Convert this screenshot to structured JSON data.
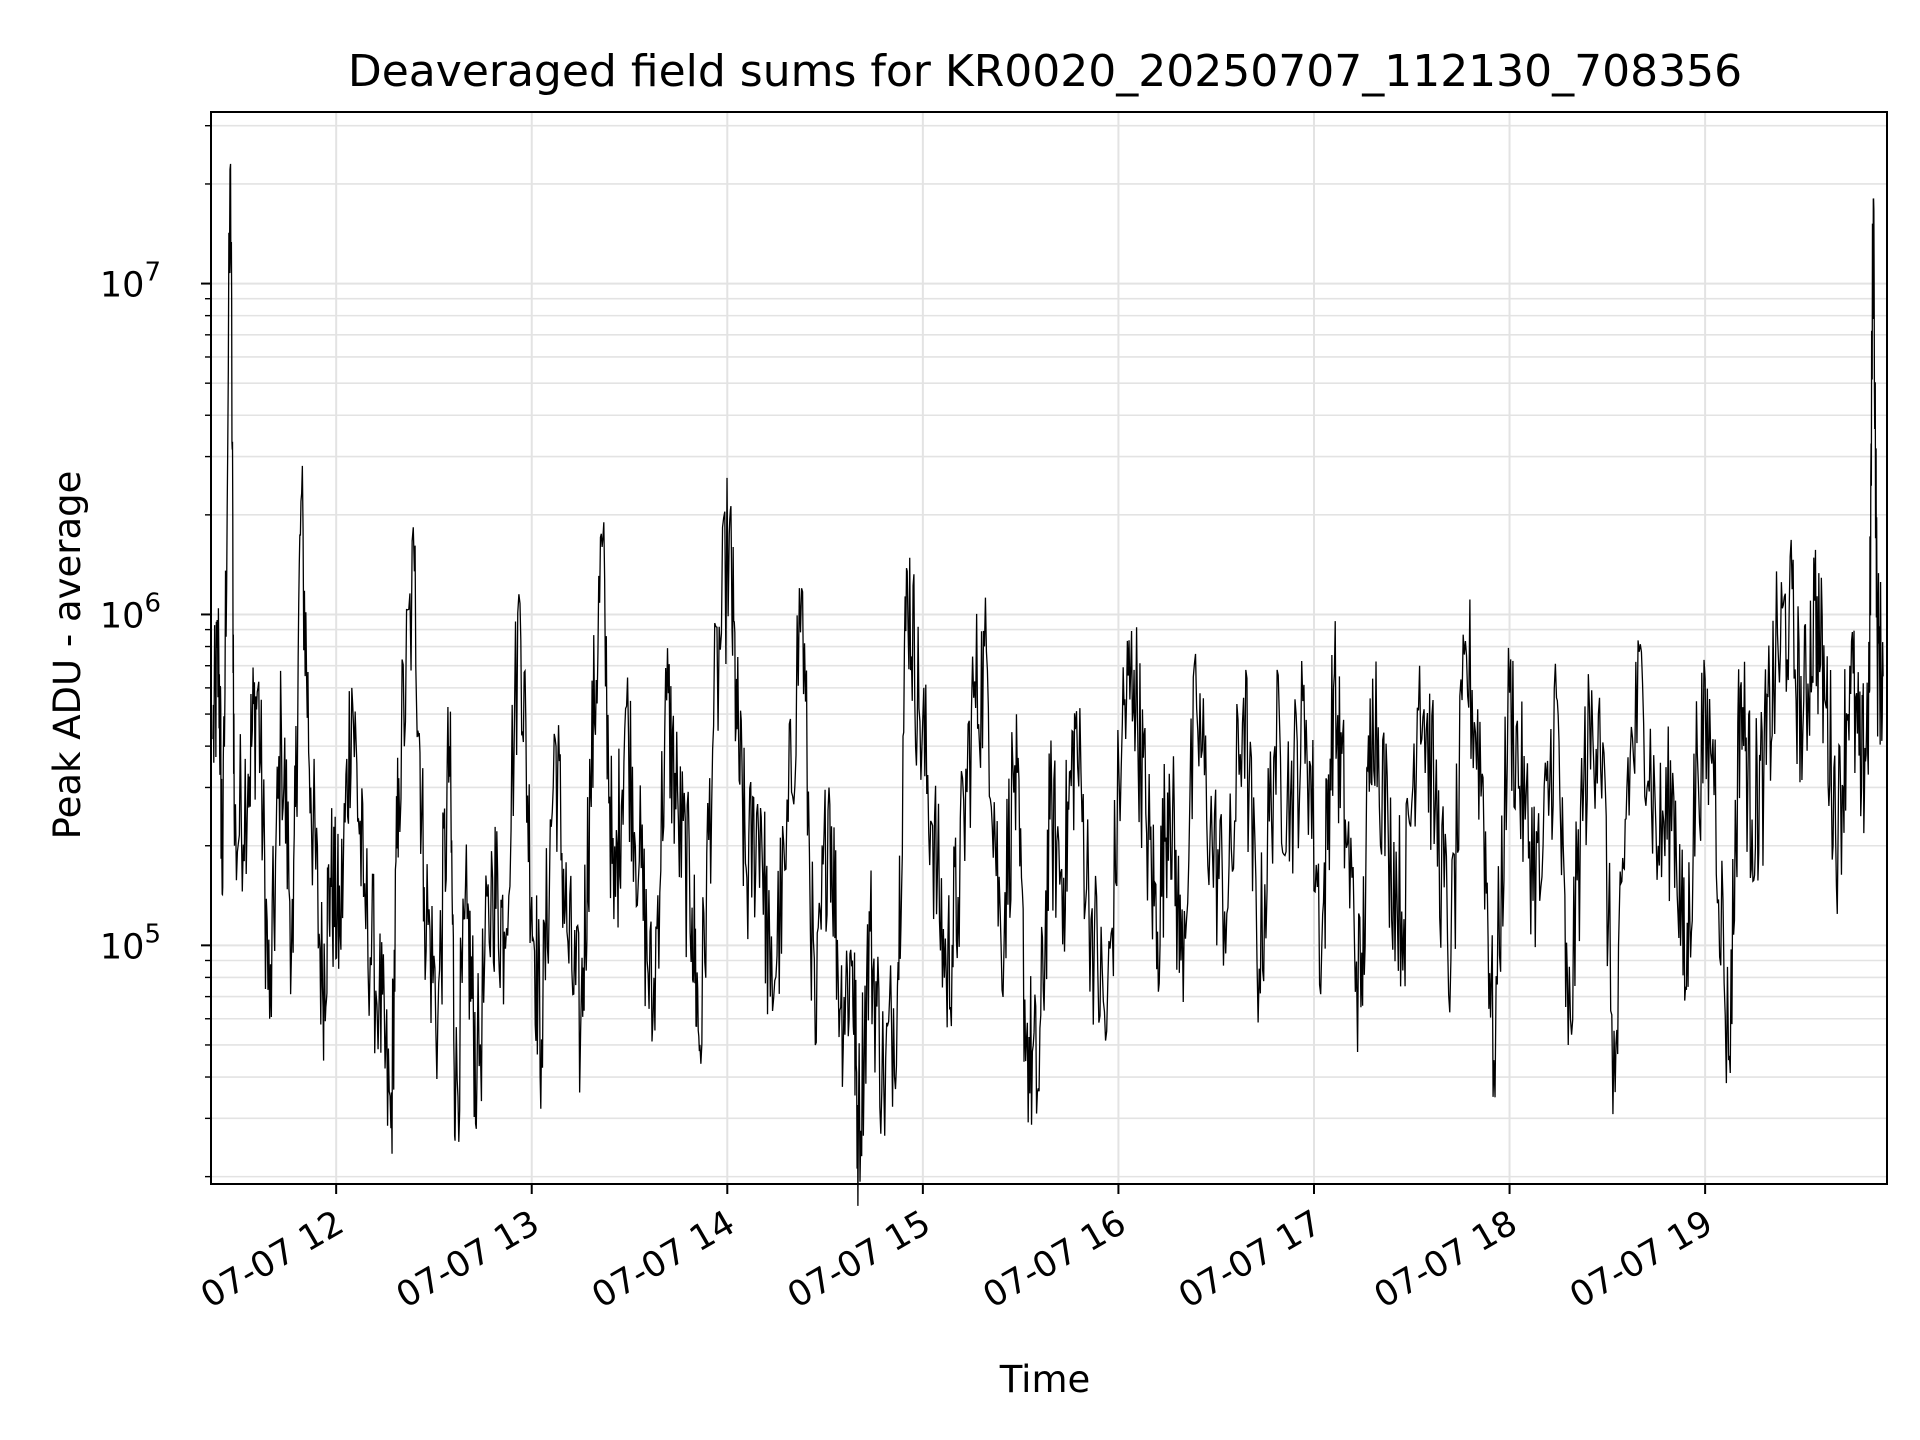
{
  "chart_data": {
    "type": "line",
    "title": "Deaveraged field sums for KR0020_20250707_112130_708356",
    "xlabel": "Time",
    "ylabel": "Peak ADU - average",
    "yscale": "log",
    "grid": true,
    "line_color": "#000000",
    "grid_color": "#e3e3e3",
    "xlim_hours": [
      11.36,
      19.93
    ],
    "ylim": [
      19000,
      33000000
    ],
    "x_ticks": [
      {
        "hour": 12,
        "label": "07-07 12"
      },
      {
        "hour": 13,
        "label": "07-07 13"
      },
      {
        "hour": 14,
        "label": "07-07 14"
      },
      {
        "hour": 15,
        "label": "07-07 15"
      },
      {
        "hour": 16,
        "label": "07-07 16"
      },
      {
        "hour": 17,
        "label": "07-07 17"
      },
      {
        "hour": 18,
        "label": "07-07 18"
      },
      {
        "hour": 19,
        "label": "07-07 19"
      }
    ],
    "y_ticks": [
      {
        "value": 100000,
        "base": "10",
        "exp": "5"
      },
      {
        "value": 1000000,
        "base": "10",
        "exp": "6"
      },
      {
        "value": 10000000,
        "base": "10",
        "exp": "7"
      }
    ],
    "series": [
      {
        "points": [
          [
            11.37,
            420000
          ],
          [
            11.4,
            750000
          ],
          [
            11.42,
            150000
          ],
          [
            11.46,
            23000000
          ],
          [
            11.48,
            200000
          ],
          [
            11.55,
            330000
          ],
          [
            11.6,
            600000
          ],
          [
            11.66,
            60000
          ],
          [
            11.72,
            450000
          ],
          [
            11.78,
            95000
          ],
          [
            11.82,
            2200000
          ],
          [
            11.87,
            300000
          ],
          [
            11.93,
            75000
          ],
          [
            11.97,
            160000
          ],
          [
            12.02,
            110000
          ],
          [
            12.08,
            600000
          ],
          [
            12.14,
            140000
          ],
          [
            12.22,
            70000
          ],
          [
            12.28,
            28000
          ],
          [
            12.32,
            320000
          ],
          [
            12.4,
            1350000
          ],
          [
            12.45,
            150000
          ],
          [
            12.52,
            60000
          ],
          [
            12.58,
            400000
          ],
          [
            12.61,
            33000
          ],
          [
            12.67,
            120000
          ],
          [
            12.72,
            40000
          ],
          [
            12.8,
            160000
          ],
          [
            12.86,
            110000
          ],
          [
            12.94,
            1080000
          ],
          [
            13.0,
            140000
          ],
          [
            13.05,
            52000
          ],
          [
            13.12,
            420000
          ],
          [
            13.18,
            110000
          ],
          [
            13.25,
            55000
          ],
          [
            13.3,
            300000
          ],
          [
            13.36,
            1600000
          ],
          [
            13.42,
            120000
          ],
          [
            13.48,
            520000
          ],
          [
            13.55,
            180000
          ],
          [
            13.62,
            60000
          ],
          [
            13.69,
            550000
          ],
          [
            13.75,
            240000
          ],
          [
            13.82,
            130000
          ],
          [
            13.86,
            50000
          ],
          [
            13.93,
            460000
          ],
          [
            14.01,
            1750000
          ],
          [
            14.05,
            450000
          ],
          [
            14.1,
            160000
          ],
          [
            14.17,
            260000
          ],
          [
            14.22,
            70000
          ],
          [
            14.3,
            170000
          ],
          [
            14.38,
            1200000
          ],
          [
            14.45,
            50000
          ],
          [
            14.52,
            300000
          ],
          [
            14.58,
            65000
          ],
          [
            14.64,
            90000
          ],
          [
            14.67,
            27000
          ],
          [
            14.73,
            110000
          ],
          [
            14.8,
            38000
          ],
          [
            14.87,
            75000
          ],
          [
            14.92,
            1350000
          ],
          [
            14.98,
            520000
          ],
          [
            15.05,
            230000
          ],
          [
            15.12,
            80000
          ],
          [
            15.18,
            140000
          ],
          [
            15.26,
            560000
          ],
          [
            15.33,
            680000
          ],
          [
            15.4,
            100000
          ],
          [
            15.47,
            350000
          ],
          [
            15.53,
            52000
          ],
          [
            15.59,
            37000
          ],
          [
            15.65,
            240000
          ],
          [
            15.72,
            160000
          ],
          [
            15.78,
            450000
          ],
          [
            15.86,
            120000
          ],
          [
            15.94,
            55000
          ],
          [
            16.02,
            470000
          ],
          [
            16.08,
            680000
          ],
          [
            16.14,
            250000
          ],
          [
            16.2,
            110000
          ],
          [
            16.26,
            330000
          ],
          [
            16.32,
            90000
          ],
          [
            16.4,
            520000
          ],
          [
            16.48,
            200000
          ],
          [
            16.56,
            130000
          ],
          [
            16.64,
            560000
          ],
          [
            16.72,
            85000
          ],
          [
            16.8,
            400000
          ],
          [
            16.88,
            280000
          ],
          [
            16.96,
            480000
          ],
          [
            17.04,
            100000
          ],
          [
            17.1,
            600000
          ],
          [
            17.16,
            240000
          ],
          [
            17.24,
            65000
          ],
          [
            17.3,
            640000
          ],
          [
            17.38,
            210000
          ],
          [
            17.46,
            120000
          ],
          [
            17.54,
            700000
          ],
          [
            17.62,
            260000
          ],
          [
            17.7,
            90000
          ],
          [
            17.78,
            750000
          ],
          [
            17.86,
            330000
          ],
          [
            17.92,
            45000
          ],
          [
            18.0,
            580000
          ],
          [
            18.08,
            240000
          ],
          [
            18.16,
            150000
          ],
          [
            18.24,
            560000
          ],
          [
            18.3,
            50000
          ],
          [
            18.38,
            320000
          ],
          [
            18.46,
            560000
          ],
          [
            18.54,
            36000
          ],
          [
            18.6,
            300000
          ],
          [
            18.68,
            620000
          ],
          [
            18.76,
            200000
          ],
          [
            18.84,
            280000
          ],
          [
            18.9,
            75000
          ],
          [
            18.96,
            380000
          ],
          [
            19.04,
            420000
          ],
          [
            19.12,
            45000
          ],
          [
            19.18,
            600000
          ],
          [
            19.24,
            240000
          ],
          [
            19.3,
            330000
          ],
          [
            19.36,
            700000
          ],
          [
            19.43,
            1050000
          ],
          [
            19.5,
            450000
          ],
          [
            19.56,
            1100000
          ],
          [
            19.62,
            520000
          ],
          [
            19.68,
            220000
          ],
          [
            19.74,
            700000
          ],
          [
            19.8,
            300000
          ],
          [
            19.84,
            580000
          ],
          [
            19.86,
            18000000
          ],
          [
            19.88,
            800000
          ],
          [
            19.91,
            650000
          ]
        ]
      }
    ]
  }
}
